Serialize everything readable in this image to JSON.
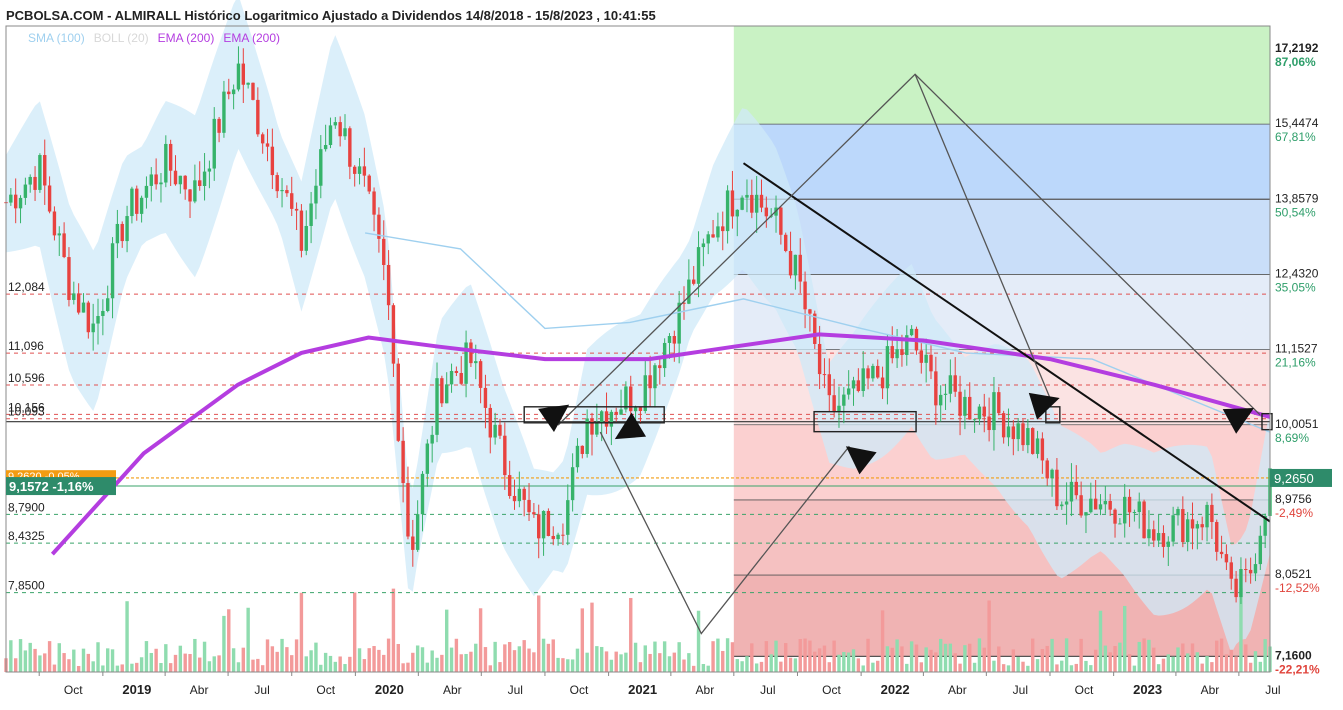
{
  "header": {
    "title": "PCBOLSA.COM - ALMIRALL Histórico Logaritmico Ajustado a Dividendos 14/8/2018 - 15/8/2023 , 10:41:55"
  },
  "legend": [
    {
      "label": "SMA (100)",
      "color": "#9fd0ef"
    },
    {
      "label": "BOLL (20)",
      "color": "#d8d8d8"
    },
    {
      "label": "EMA (200)",
      "color": "#b43de0"
    },
    {
      "label": "EMA (200)",
      "color": "#b43de0"
    }
  ],
  "right_axis": [
    {
      "price": "17,2192",
      "pct": "87,06%",
      "sign": "pos",
      "bold": true
    },
    {
      "price": "15,4474",
      "pct": "67,81%",
      "sign": "pos"
    },
    {
      "price": "13,8579",
      "pct": "50,54%",
      "sign": "pos"
    },
    {
      "price": "12,4320",
      "pct": "35,05%",
      "sign": "pos"
    },
    {
      "price": "11,1527",
      "pct": "21,16%",
      "sign": "pos"
    },
    {
      "price": "10,0051",
      "pct": "8,69%",
      "sign": "pos"
    },
    {
      "price": "8,9756",
      "pct": "-2,49%",
      "sign": "neg"
    },
    {
      "price": "8,0521",
      "pct": "-12,52%",
      "sign": "neg"
    },
    {
      "price": "7,1600",
      "pct": "-22,21%",
      "sign": "neg",
      "bold": true
    }
  ],
  "current_price_tag": "9,2650",
  "left_levels": [
    {
      "label": "12,084",
      "price": 12.084,
      "color": "#e05050"
    },
    {
      "label": "11,096",
      "price": 11.096,
      "color": "#e05050"
    },
    {
      "label": "10,596",
      "price": 10.596,
      "color": "#e05050"
    },
    {
      "label": "10,156",
      "price": 10.156,
      "color": "#e05050"
    },
    {
      "label": "10,093",
      "price": 10.093,
      "color": "#e05050"
    },
    {
      "label": "8,7900",
      "price": 8.79,
      "color": "#3aa36a"
    },
    {
      "label": "8,4325",
      "price": 8.4325,
      "color": "#3aa36a"
    },
    {
      "label": "7,8500",
      "price": 7.85,
      "color": "#3aa36a"
    }
  ],
  "last_price_tag": "9,1572  -1,16%",
  "orange_tag": "9,2620  -0,05%",
  "x_axis": [
    {
      "label": "Oct",
      "year": false
    },
    {
      "label": "2019",
      "year": true
    },
    {
      "label": "Abr",
      "year": false
    },
    {
      "label": "Jul",
      "year": false
    },
    {
      "label": "Oct",
      "year": false
    },
    {
      "label": "2020",
      "year": true
    },
    {
      "label": "Abr",
      "year": false
    },
    {
      "label": "Jul",
      "year": false
    },
    {
      "label": "Oct",
      "year": false
    },
    {
      "label": "2021",
      "year": true
    },
    {
      "label": "Abr",
      "year": false
    },
    {
      "label": "Jul",
      "year": false
    },
    {
      "label": "Oct",
      "year": false
    },
    {
      "label": "2022",
      "year": true
    },
    {
      "label": "Abr",
      "year": false
    },
    {
      "label": "Jul",
      "year": false
    },
    {
      "label": "Oct",
      "year": false
    },
    {
      "label": "2023",
      "year": true
    },
    {
      "label": "Abr",
      "year": false
    },
    {
      "label": "Jul",
      "year": false
    }
  ],
  "chart_data": {
    "type": "candlestick",
    "title": "PCBOLSA.COM - ALMIRALL Histórico Logaritmico Ajustado a Dividendos 14/8/2018 - 15/8/2023 , 10:41:55",
    "scale": "log",
    "ylim": [
      7.0,
      17.8
    ],
    "xlim": [
      "2018-08-14",
      "2023-08-15"
    ],
    "grid": false,
    "fib_levels": [
      17.2192,
      15.4474,
      13.8579,
      12.432,
      11.1527,
      10.0051,
      8.9756,
      8.0521,
      7.16
    ],
    "last_close": 9.265,
    "price_path": [
      [
        "2018-08-14",
        13.8
      ],
      [
        "2018-10-01",
        14.5
      ],
      [
        "2018-11-15",
        12.2
      ],
      [
        "2018-12-20",
        11.5
      ],
      [
        "2019-02-01",
        13.5
      ],
      [
        "2019-04-01",
        14.6
      ],
      [
        "2019-05-15",
        14.0
      ],
      [
        "2019-07-15",
        16.8
      ],
      [
        "2019-09-01",
        14.8
      ],
      [
        "2019-10-15",
        13.0
      ],
      [
        "2019-12-01",
        15.8
      ],
      [
        "2020-01-15",
        14.0
      ],
      [
        "2020-02-15",
        12.2
      ],
      [
        "2020-03-20",
        8.3
      ],
      [
        "2020-05-01",
        10.6
      ],
      [
        "2020-06-15",
        11.0
      ],
      [
        "2020-08-01",
        9.5
      ],
      [
        "2020-09-15",
        8.6
      ],
      [
        "2020-10-30",
        8.8
      ],
      [
        "2020-12-01",
        10.1
      ],
      [
        "2021-02-15",
        10.5
      ],
      [
        "2021-04-15",
        11.8
      ],
      [
        "2021-06-01",
        13.3
      ],
      [
        "2021-07-15",
        14.2
      ],
      [
        "2021-08-30",
        13.4
      ],
      [
        "2021-10-01",
        12.4
      ],
      [
        "2021-11-15",
        10.2
      ],
      [
        "2021-12-20",
        10.4
      ],
      [
        "2022-01-30",
        10.8
      ],
      [
        "2022-03-15",
        11.3
      ],
      [
        "2022-04-15",
        10.6
      ],
      [
        "2022-06-01",
        10.3
      ],
      [
        "2022-07-15",
        10.2
      ],
      [
        "2022-09-01",
        9.8
      ],
      [
        "2022-10-15",
        9.0
      ],
      [
        "2022-11-30",
        9.0
      ],
      [
        "2023-01-15",
        8.9
      ],
      [
        "2023-03-01",
        8.6
      ],
      [
        "2023-04-15",
        8.7
      ],
      [
        "2023-05-20",
        8.8
      ],
      [
        "2023-06-20",
        7.8
      ],
      [
        "2023-07-15",
        8.0
      ],
      [
        "2023-08-15",
        9.27
      ]
    ],
    "ema200": [
      [
        "2018-10-20",
        8.3
      ],
      [
        "2019-03-01",
        9.6
      ],
      [
        "2019-07-15",
        10.6
      ],
      [
        "2019-10-15",
        11.1
      ],
      [
        "2020-01-20",
        11.35
      ],
      [
        "2020-05-01",
        11.2
      ],
      [
        "2020-10-01",
        11.0
      ],
      [
        "2021-03-01",
        11.0
      ],
      [
        "2021-07-01",
        11.2
      ],
      [
        "2021-11-01",
        11.4
      ],
      [
        "2022-04-01",
        11.3
      ],
      [
        "2022-10-01",
        11.0
      ],
      [
        "2023-03-01",
        10.6
      ],
      [
        "2023-08-15",
        10.12
      ]
    ],
    "sma100": [
      [
        "2020-01-15",
        13.2
      ],
      [
        "2020-06-01",
        12.9
      ],
      [
        "2020-10-01",
        11.5
      ],
      [
        "2021-02-01",
        11.6
      ],
      [
        "2021-07-15",
        12.0
      ],
      [
        "2022-01-01",
        11.5
      ],
      [
        "2022-06-01",
        11.1
      ],
      [
        "2022-12-01",
        11.0
      ],
      [
        "2023-08-15",
        9.9
      ]
    ]
  }
}
